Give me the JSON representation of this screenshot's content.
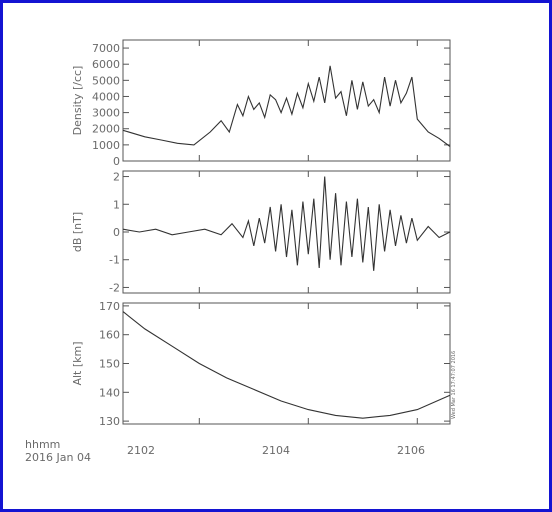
{
  "frame_color": "#1414d2",
  "ink_color": "#555555",
  "bottom": {
    "xunits": "hhmm",
    "date": "2016 Jan 04",
    "x_ticks": [
      "2102",
      "2104",
      "2106"
    ],
    "stamp": "Wed Mar 16 17:47:07 2016"
  },
  "chart_data": [
    {
      "type": "line",
      "ylabel": "Density [/cc]",
      "ylim": [
        0,
        7500
      ],
      "yticks": [
        0,
        1000,
        2000,
        3000,
        4000,
        5000,
        6000,
        7000
      ],
      "xlim": [
        2100.6,
        2106.6
      ],
      "x": [
        2100.6,
        2101.0,
        2101.3,
        2101.6,
        2101.9,
        2102.2,
        2102.4,
        2102.55,
        2102.7,
        2102.8,
        2102.9,
        2103.0,
        2103.1,
        2103.2,
        2103.3,
        2103.4,
        2103.5,
        2103.6,
        2103.7,
        2103.8,
        2103.9,
        2104.0,
        2104.1,
        2104.2,
        2104.3,
        2104.4,
        2104.5,
        2104.6,
        2104.7,
        2104.8,
        2104.9,
        2105.0,
        2105.1,
        2105.2,
        2105.3,
        2105.4,
        2105.5,
        2105.6,
        2105.7,
        2105.8,
        2105.9,
        2106.0,
        2106.2,
        2106.4,
        2106.6
      ],
      "y": [
        1900,
        1500,
        1300,
        1100,
        1000,
        1800,
        2500,
        1800,
        3500,
        2800,
        4000,
        3200,
        3600,
        2700,
        4100,
        3800,
        3000,
        3900,
        2900,
        4200,
        3300,
        4800,
        3700,
        5200,
        3600,
        5900,
        3900,
        4300,
        2800,
        5000,
        3200,
        4900,
        3400,
        3800,
        3000,
        5200,
        3400,
        5000,
        3600,
        4200,
        5200,
        2600,
        1800,
        1400,
        900
      ]
    },
    {
      "type": "line",
      "ylabel": "dB [nT]",
      "ylim": [
        -2.2,
        2.2
      ],
      "yticks": [
        -2,
        -1,
        0,
        1,
        2
      ],
      "xlim": [
        2100.6,
        2106.6
      ],
      "x": [
        2100.6,
        2100.9,
        2101.2,
        2101.5,
        2101.8,
        2102.1,
        2102.4,
        2102.6,
        2102.8,
        2102.9,
        2103.0,
        2103.1,
        2103.2,
        2103.3,
        2103.4,
        2103.5,
        2103.6,
        2103.7,
        2103.8,
        2103.9,
        2104.0,
        2104.1,
        2104.2,
        2104.3,
        2104.4,
        2104.5,
        2104.6,
        2104.7,
        2104.8,
        2104.9,
        2105.0,
        2105.1,
        2105.2,
        2105.3,
        2105.4,
        2105.5,
        2105.6,
        2105.7,
        2105.8,
        2105.9,
        2106.0,
        2106.2,
        2106.4,
        2106.6
      ],
      "y": [
        0.1,
        0.0,
        0.1,
        -0.1,
        0.0,
        0.1,
        -0.1,
        0.3,
        -0.2,
        0.4,
        -0.5,
        0.5,
        -0.4,
        0.9,
        -0.7,
        1.0,
        -0.9,
        0.8,
        -1.2,
        1.1,
        -0.8,
        1.2,
        -1.3,
        2.0,
        -1.0,
        1.4,
        -1.2,
        1.1,
        -0.9,
        1.2,
        -1.1,
        0.9,
        -1.4,
        1.0,
        -0.7,
        0.8,
        -0.5,
        0.6,
        -0.4,
        0.5,
        -0.3,
        0.2,
        -0.2,
        0.0
      ]
    },
    {
      "type": "line",
      "ylabel": "Alt [km]",
      "ylim": [
        129,
        171
      ],
      "yticks": [
        130,
        140,
        150,
        160,
        170
      ],
      "xlim": [
        2100.6,
        2106.6
      ],
      "x": [
        2100.6,
        2101.0,
        2101.5,
        2102.0,
        2102.5,
        2103.0,
        2103.5,
        2104.0,
        2104.5,
        2105.0,
        2105.5,
        2106.0,
        2106.6
      ],
      "y": [
        168,
        162,
        156,
        150,
        145,
        141,
        137,
        134,
        132,
        131,
        132,
        134,
        139
      ]
    }
  ]
}
